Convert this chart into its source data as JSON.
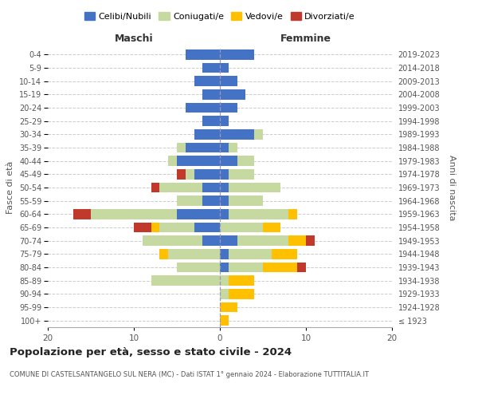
{
  "age_groups": [
    "100+",
    "95-99",
    "90-94",
    "85-89",
    "80-84",
    "75-79",
    "70-74",
    "65-69",
    "60-64",
    "55-59",
    "50-54",
    "45-49",
    "40-44",
    "35-39",
    "30-34",
    "25-29",
    "20-24",
    "15-19",
    "10-14",
    "5-9",
    "0-4"
  ],
  "birth_years": [
    "≤ 1923",
    "1924-1928",
    "1929-1933",
    "1934-1938",
    "1939-1943",
    "1944-1948",
    "1949-1953",
    "1954-1958",
    "1959-1963",
    "1964-1968",
    "1969-1973",
    "1974-1978",
    "1979-1983",
    "1984-1988",
    "1989-1993",
    "1994-1998",
    "1999-2003",
    "2004-2008",
    "2009-2013",
    "2014-2018",
    "2019-2023"
  ],
  "males": {
    "celibi": [
      0,
      0,
      0,
      0,
      0,
      0,
      2,
      3,
      5,
      2,
      2,
      3,
      5,
      4,
      3,
      2,
      4,
      2,
      3,
      2,
      4
    ],
    "coniugati": [
      0,
      0,
      0,
      8,
      5,
      6,
      7,
      4,
      10,
      3,
      5,
      1,
      1,
      1,
      0,
      0,
      0,
      0,
      0,
      0,
      0
    ],
    "vedovi": [
      0,
      0,
      0,
      0,
      0,
      1,
      0,
      1,
      0,
      0,
      0,
      0,
      0,
      0,
      0,
      0,
      0,
      0,
      0,
      0,
      0
    ],
    "divorziati": [
      0,
      0,
      0,
      0,
      0,
      0,
      0,
      2,
      2,
      0,
      1,
      1,
      0,
      0,
      0,
      0,
      0,
      0,
      0,
      0,
      0
    ]
  },
  "females": {
    "nubili": [
      0,
      0,
      0,
      0,
      1,
      1,
      2,
      0,
      1,
      1,
      1,
      1,
      2,
      1,
      4,
      1,
      2,
      3,
      2,
      1,
      4
    ],
    "coniugate": [
      0,
      0,
      1,
      1,
      4,
      5,
      6,
      5,
      7,
      4,
      6,
      3,
      2,
      1,
      1,
      0,
      0,
      0,
      0,
      0,
      0
    ],
    "vedove": [
      1,
      2,
      3,
      3,
      4,
      3,
      2,
      2,
      1,
      0,
      0,
      0,
      0,
      0,
      0,
      0,
      0,
      0,
      0,
      0,
      0
    ],
    "divorziate": [
      0,
      0,
      0,
      0,
      1,
      0,
      1,
      0,
      0,
      0,
      0,
      0,
      0,
      0,
      0,
      0,
      0,
      0,
      0,
      0,
      0
    ]
  },
  "colors": {
    "celibi": "#4472C4",
    "coniugati": "#c5d9a0",
    "vedovi": "#ffc000",
    "divorziati": "#c0392b"
  },
  "title": "Popolazione per età, sesso e stato civile - 2024",
  "subtitle": "COMUNE DI CASTELSANTANGELO SUL NERA (MC) - Dati ISTAT 1° gennaio 2024 - Elaborazione TUTTITALIA.IT",
  "label_maschi": "Maschi",
  "label_femmine": "Femmine",
  "ylabel_left": "Fasce di età",
  "ylabel_right": "Anni di nascita",
  "xlim": 20,
  "legend_labels": [
    "Celibi/Nubili",
    "Coniugati/e",
    "Vedovi/e",
    "Divorziati/e"
  ],
  "background_color": "#ffffff"
}
